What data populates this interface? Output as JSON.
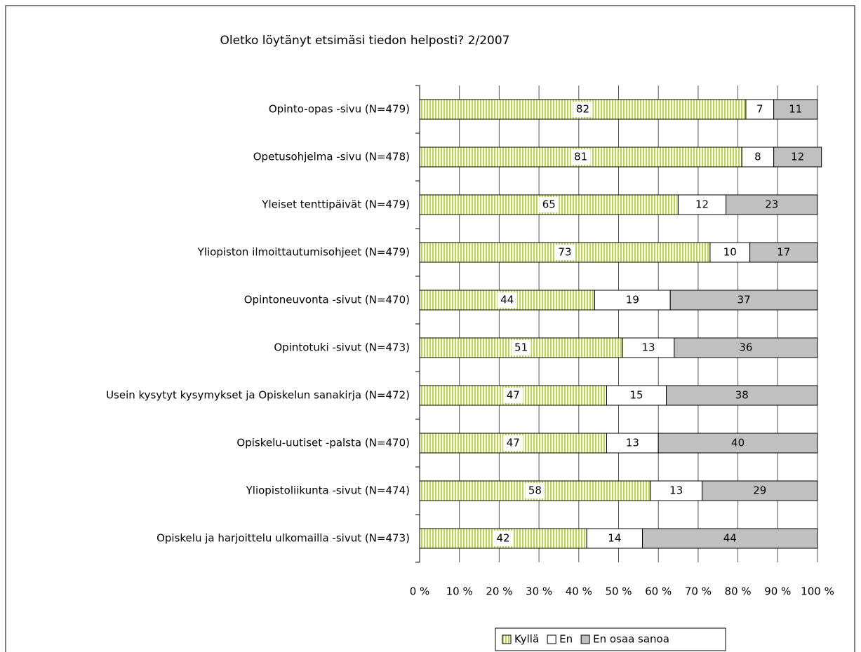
{
  "chart_data": {
    "type": "stacked_bar_horizontal",
    "title": "Oletko löytänyt etsimäsi tiedon helposti? 2/2007",
    "categories": [
      "Opinto-opas -sivu (N=479)",
      "Opetusohjelma -sivu (N=478)",
      "Yleiset tenttipäivät (N=479)",
      "Yliopiston ilmoittautumisohjeet (N=479)",
      "Opintoneuvonta -sivut (N=470)",
      "Opintotuki -sivut (N=473)",
      "Usein kysytyt kysymykset ja Opiskelun sanakirja (N=472)",
      "Opiskelu-uutiset -palsta (N=470)",
      "Yliopistoliikunta -sivut (N=474)",
      "Opiskelu ja harjoittelu ulkomailla -sivut (N=473)"
    ],
    "series": [
      {
        "name": "Kyllä",
        "color": "#b8d84a",
        "values": [
          82,
          81,
          65,
          73,
          44,
          51,
          47,
          47,
          58,
          42
        ]
      },
      {
        "name": "En",
        "color": "#ffffff",
        "values": [
          7,
          8,
          12,
          10,
          19,
          13,
          15,
          13,
          13,
          14
        ]
      },
      {
        "name": "En osaa sanoa",
        "color": "#c0c0c0",
        "values": [
          11,
          12,
          23,
          17,
          37,
          36,
          38,
          40,
          29,
          44
        ]
      }
    ],
    "xlim": [
      0,
      100
    ],
    "xticks": [
      {
        "value": 0,
        "label": "0 %"
      },
      {
        "value": 10,
        "label": "10 %"
      },
      {
        "value": 20,
        "label": "20 %"
      },
      {
        "value": 30,
        "label": "30 %"
      },
      {
        "value": 40,
        "label": "40 %"
      },
      {
        "value": 50,
        "label": "50 %"
      },
      {
        "value": 60,
        "label": "60 %"
      },
      {
        "value": 70,
        "label": "70 %"
      },
      {
        "value": 80,
        "label": "80 %"
      },
      {
        "value": 90,
        "label": "90 %"
      },
      {
        "value": 100,
        "label": "100 %"
      }
    ],
    "grid": true,
    "legend": "bottom"
  }
}
